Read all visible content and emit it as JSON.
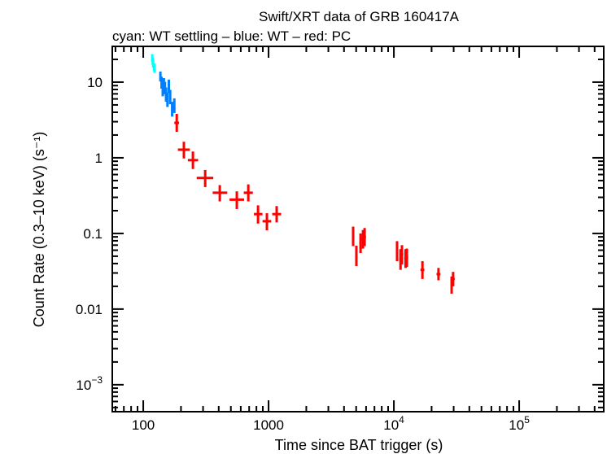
{
  "chart_data": {
    "type": "scatter",
    "title": "Swift/XRT data of GRB 160417A",
    "subtitle": "cyan: WT settling – blue: WT – red: PC",
    "xlabel": "Time since BAT trigger (s)",
    "ylabel": "Count Rate (0.3–10 keV) (s⁻¹)",
    "xscale": "log",
    "yscale": "log",
    "xlim": [
      56.6,
      473000
    ],
    "ylim": [
      0.00044,
      29.7
    ],
    "grid": false,
    "x_ticks": [
      {
        "value": 100,
        "label": "100"
      },
      {
        "value": 1000,
        "label": "1000"
      },
      {
        "value": 10000,
        "label": "10",
        "exp": "4"
      },
      {
        "value": 100000,
        "label": "10",
        "exp": "5"
      }
    ],
    "y_ticks": [
      {
        "value": 0.001,
        "label": "10",
        "exp": "−3"
      },
      {
        "value": 0.01,
        "label": "0.01"
      },
      {
        "value": 0.1,
        "label": "0.1"
      },
      {
        "value": 1,
        "label": "1"
      },
      {
        "value": 10,
        "label": "10"
      }
    ],
    "series": [
      {
        "name": "WT settling",
        "color": "#00ffff",
        "points": [
          [
            118,
            21,
            1,
            1,
            2.5,
            2.5
          ],
          [
            119,
            19,
            1,
            1,
            2,
            2
          ],
          [
            120,
            17.5,
            1,
            1,
            2,
            2
          ],
          [
            122,
            16,
            1,
            1,
            1.8,
            1.8
          ],
          [
            123,
            15,
            1,
            1,
            1.7,
            1.7
          ]
        ]
      },
      {
        "name": "WT",
        "color": "#0080ff",
        "points": [
          [
            137,
            12,
            1.5,
            1.5,
            1.8,
            1.8
          ],
          [
            140,
            10,
            1.5,
            1.5,
            1.8,
            1.8
          ],
          [
            143,
            8,
            1.5,
            1.5,
            1.5,
            1.5
          ],
          [
            146,
            9.5,
            1.5,
            1.5,
            1.8,
            1.8
          ],
          [
            149,
            8.5,
            1.5,
            1.5,
            1.6,
            1.6
          ],
          [
            152,
            7,
            1.5,
            1.5,
            1.5,
            1.5
          ],
          [
            156,
            6,
            1.5,
            1.5,
            1.3,
            1.3
          ],
          [
            160,
            9,
            2,
            2,
            1.8,
            1.8
          ],
          [
            164,
            6.5,
            2,
            2,
            1.4,
            1.4
          ],
          [
            170,
            4.5,
            3,
            3,
            1,
            1
          ],
          [
            177,
            5,
            3,
            3,
            1.1,
            1.1
          ]
        ]
      },
      {
        "name": "PC",
        "color": "#ff0000",
        "points": [
          [
            185,
            2.9,
            8,
            8,
            0.7,
            0.9
          ],
          [
            211,
            1.28,
            22,
            24,
            0.3,
            0.35
          ],
          [
            249,
            0.93,
            22,
            25,
            0.22,
            0.28
          ],
          [
            312,
            0.54,
            45,
            50,
            0.13,
            0.15
          ],
          [
            408,
            0.345,
            50,
            60,
            0.08,
            0.09
          ],
          [
            558,
            0.28,
            70,
            80,
            0.07,
            0.08
          ],
          [
            689,
            0.345,
            55,
            60,
            0.08,
            0.1
          ],
          [
            824,
            0.18,
            60,
            70,
            0.045,
            0.055
          ],
          [
            970,
            0.145,
            75,
            80,
            0.035,
            0.04
          ],
          [
            1160,
            0.18,
            90,
            100,
            0.04,
            0.05
          ],
          [
            4730,
            0.093,
            100,
            100,
            0.025,
            0.03
          ],
          [
            5020,
            0.051,
            100,
            100,
            0.014,
            0.018
          ],
          [
            5420,
            0.075,
            120,
            120,
            0.02,
            0.025
          ],
          [
            5670,
            0.085,
            120,
            120,
            0.022,
            0.026
          ],
          [
            5840,
            0.09,
            150,
            150,
            0.022,
            0.028
          ],
          [
            10600,
            0.059,
            200,
            200,
            0.016,
            0.02
          ],
          [
            11300,
            0.046,
            250,
            250,
            0.013,
            0.016
          ],
          [
            11600,
            0.053,
            300,
            300,
            0.014,
            0.017
          ],
          [
            12400,
            0.047,
            300,
            300,
            0.012,
            0.015
          ],
          [
            12700,
            0.048,
            300,
            300,
            0.012,
            0.015
          ],
          [
            16900,
            0.033,
            600,
            600,
            0.008,
            0.01
          ],
          [
            22700,
            0.029,
            800,
            800,
            0.005,
            0.006
          ],
          [
            28900,
            0.021,
            500,
            500,
            0.005,
            0.006
          ],
          [
            29700,
            0.025,
            900,
            900,
            0.005,
            0.006
          ]
        ]
      }
    ]
  }
}
